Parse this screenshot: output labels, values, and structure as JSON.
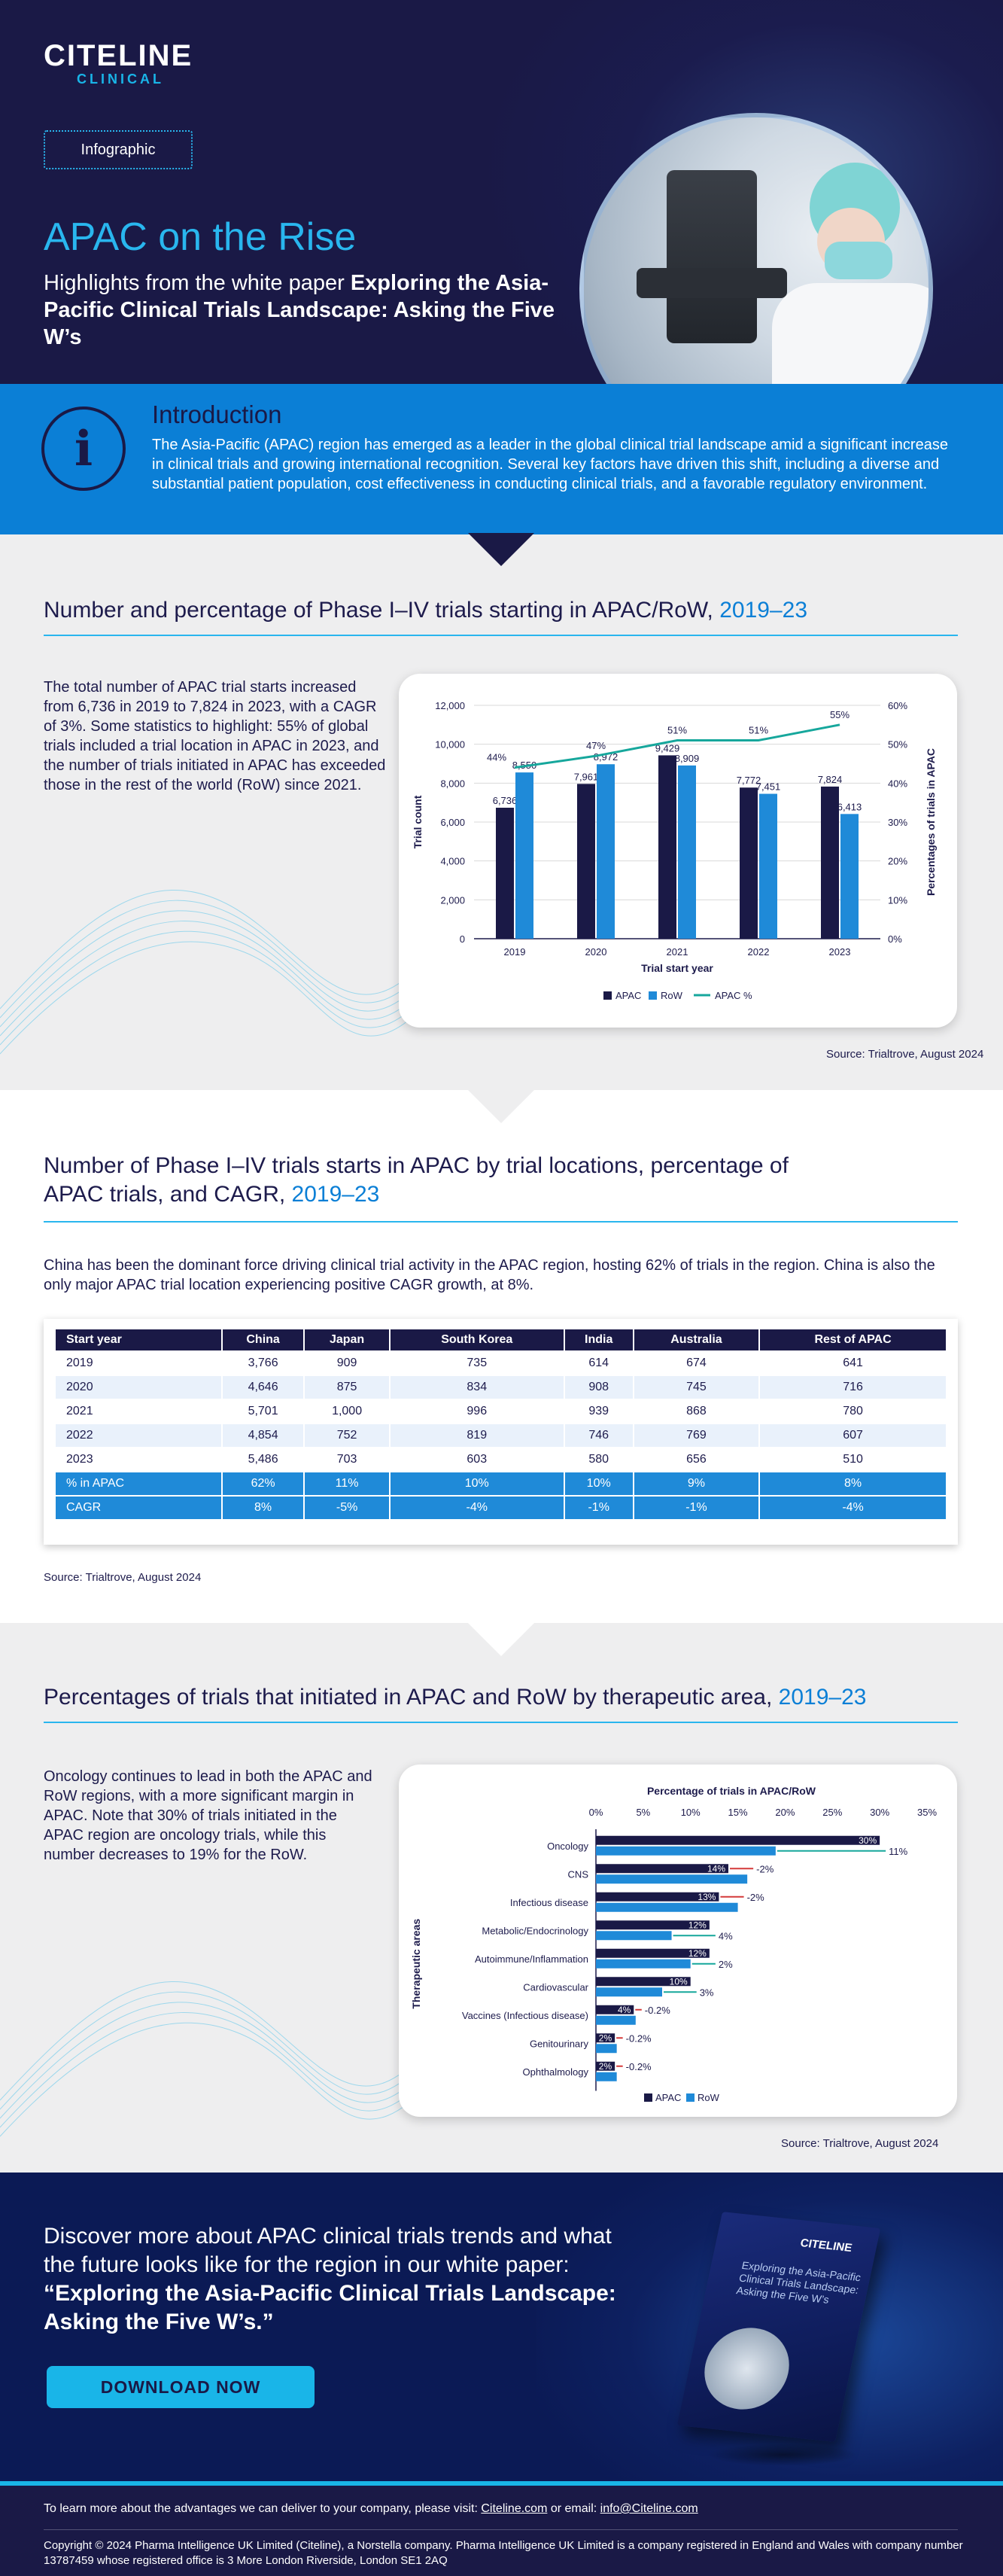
{
  "hero": {
    "logo_main": "CITELINE",
    "logo_sub": "CLINICAL",
    "tag": "Infographic",
    "title": "APAC on the Rise",
    "subtitle_plain": "Highlights from the white paper ",
    "subtitle_bold": "Exploring the Asia-Pacific Clinical Trials Landscape: Asking the Five W’s"
  },
  "intro": {
    "icon": "info-icon",
    "title": "Introduction",
    "text": "The Asia-Pacific (APAC) region has emerged as a leader in the global clinical trial landscape amid a significant increase in clinical trials and growing international recognition. Several key factors have driven this shift, including a diverse and substantial patient population, cost effectiveness in conducting clinical trials, and a favorable regulatory environment."
  },
  "section1": {
    "title": "Number and percentage of Phase I–IV trials starting in APAC/RoW, ",
    "title_year": "2019–23",
    "text": "The total number of APAC trial starts increased from 6,736 in 2019 to 7,824 in 2023, with a CAGR of 3%. Some statistics to highlight: 55% of global trials included a trial location in APAC in 2023, and the number of trials initiated in APAC has exceeded those in the rest of the world (RoW) since 2021.",
    "source": "Source: Trialtrove, August 2024"
  },
  "section2": {
    "title_line1": "Number of Phase I–IV trials starts in APAC by trial locations, percentage of",
    "title_line2": "APAC trials, and CAGR, ",
    "title_year": "2019–23",
    "text": "China has been the dominant force driving clinical trial activity in the APAC region, hosting 62% of trials in the region. China is also the only major APAC trial location experiencing positive CAGR growth, at 8%.",
    "source": "Source: Trialtrove, August 2024",
    "table": {
      "headers": [
        "Start year",
        "China",
        "Japan",
        "South Korea",
        "India",
        "Australia",
        "Rest of APAC"
      ],
      "rows": [
        [
          "2019",
          "3,766",
          "909",
          "735",
          "614",
          "674",
          "641"
        ],
        [
          "2020",
          "4,646",
          "875",
          "834",
          "908",
          "745",
          "716"
        ],
        [
          "2021",
          "5,701",
          "1,000",
          "996",
          "939",
          "868",
          "780"
        ],
        [
          "2022",
          "4,854",
          "752",
          "819",
          "746",
          "769",
          "607"
        ],
        [
          "2023",
          "5,486",
          "703",
          "603",
          "580",
          "656",
          "510"
        ],
        [
          "% in APAC",
          "62%",
          "11%",
          "10%",
          "10%",
          "9%",
          "8%"
        ],
        [
          "CAGR",
          "8%",
          "-5%",
          "-4%",
          "-1%",
          "-1%",
          "-4%"
        ]
      ]
    }
  },
  "section3": {
    "title": "Percentages of trials that initiated in APAC and RoW by therapeutic area, ",
    "title_year": "2019–23",
    "text": "Oncology continues to lead in both the APAC and RoW regions, with a more significant margin in APAC. Note that 30% of trials initiated in the APAC region are oncology trials, while this number decreases to 19% for the RoW.",
    "source": "Source: Trialtrove, August 2024"
  },
  "chart_data": [
    {
      "type": "bar",
      "categories": [
        "2019",
        "2020",
        "2021",
        "2022",
        "2023"
      ],
      "series": [
        {
          "name": "APAC",
          "values": [
            6736,
            7961,
            9429,
            7772,
            7824
          ],
          "labels": [
            "6,736",
            "7,961",
            "9,429",
            "7,772",
            "7,824"
          ],
          "color": "#1a1946"
        },
        {
          "name": "RoW",
          "values": [
            8550,
            8972,
            8909,
            7451,
            6413
          ],
          "labels": [
            "8,550",
            "8,972",
            "8,909",
            "7,451",
            "6,413"
          ],
          "color": "#1f8ad8"
        }
      ],
      "line_series": {
        "name": "APAC %",
        "values": [
          44,
          47,
          51,
          51,
          55
        ],
        "labels": [
          "44%",
          "47%",
          "51%",
          "51%",
          "55%"
        ],
        "color": "#16a79c"
      },
      "xlabel": "Trial start year",
      "ylabel": "Trial count",
      "y2label": "Percentages of trials in APAC",
      "ylim": [
        0,
        12000
      ],
      "yticks": [
        "0",
        "2,000",
        "4,000",
        "6,000",
        "8,000",
        "10,000",
        "12,000"
      ],
      "y2lim": [
        0,
        60
      ],
      "y2ticks": [
        "0%",
        "10%",
        "20%",
        "30%",
        "40%",
        "50%",
        "60%"
      ],
      "legend": "bottom"
    },
    {
      "type": "bar",
      "orientation": "horizontal",
      "title": "Percentage of trials in APAC/RoW",
      "ylabel": "Therapeutic areas",
      "categories": [
        "Oncology",
        "CNS",
        "Infectious disease",
        "Metabolic/Endocrinology",
        "Autoimmune/Inflammation",
        "Cardiovascular",
        "Vaccines (Infectious disease)",
        "Genitourinary",
        "Ophthalmology"
      ],
      "series": [
        {
          "name": "APAC",
          "values": [
            30,
            14,
            13,
            12,
            12,
            10,
            4,
            2,
            2
          ],
          "labels": [
            "30%",
            "14%",
            "13%",
            "12%",
            "12%",
            "10%",
            "4%",
            "2%",
            "2%"
          ],
          "color": "#1a1946"
        },
        {
          "name": "RoW",
          "values": [
            19,
            16,
            15,
            8,
            10,
            7,
            4.2,
            2.2,
            2.2
          ],
          "color": "#1f8ad8"
        }
      ],
      "differences": [
        "11%",
        "-2%",
        "-2%",
        "4%",
        "2%",
        "3%",
        "-0.2%",
        "-0.2%",
        "-0.2%"
      ],
      "xlim": [
        0,
        35
      ],
      "xticks": [
        "0%",
        "5%",
        "10%",
        "15%",
        "20%",
        "25%",
        "30%",
        "35%"
      ],
      "legend": "bottom"
    }
  ],
  "cta": {
    "text_plain": "Discover more about APAC clinical trials trends and what the future looks like for the region in our white paper: ",
    "text_bold": "“Exploring the Asia-Pacific Clinical Trials Landscape: Asking the Five W’s.”",
    "button": "DOWNLOAD NOW",
    "book_logo": "CITELINE",
    "book_title": "Exploring the Asia-Pacific Clinical Trials Landscape: Asking the Five W’s"
  },
  "footer": {
    "line1_prefix": "To learn more about the advantages we can deliver to your company, please visit: ",
    "link_site": "Citeline.com",
    "line1_mid": " or email: ",
    "link_email": "info@Citeline.com",
    "copyright": "Copyright © 2024 Pharma Intelligence UK Limited (Citeline), a Norstella company. Pharma Intelligence UK Limited is a company registered in England and Wales with company number 13787459 whose registered office is 3 More London Riverside, London SE1 2AQ"
  }
}
